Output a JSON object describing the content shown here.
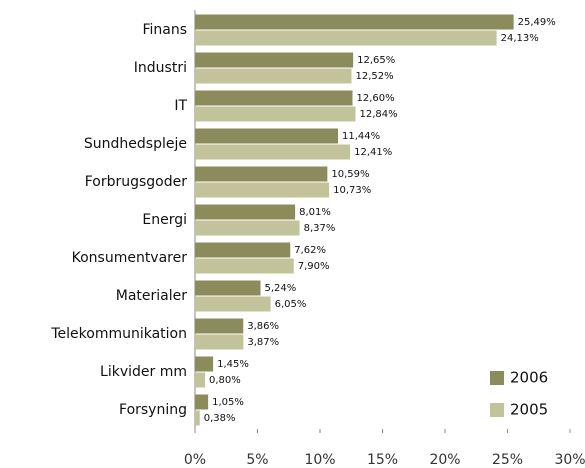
{
  "chart_data": {
    "type": "bar",
    "orientation": "horizontal",
    "categories": [
      "Finans",
      "Industri",
      "IT",
      "Sundhedspleje",
      "Forbrugsgoder",
      "Energi",
      "Konsumentvarer",
      "Materialer",
      "Telekommunikation",
      "Likvider mm",
      "Forsyning"
    ],
    "series": [
      {
        "name": "2006",
        "color": "#8b8b5b",
        "values": [
          25.49,
          12.65,
          12.6,
          11.44,
          10.59,
          8.01,
          7.62,
          5.24,
          3.86,
          1.45,
          1.05
        ],
        "value_labels": [
          "25,49%",
          "12,65%",
          "12,60%",
          "11,44%",
          "10,59%",
          "8,01%",
          "7,62%",
          "5,24%",
          "3,86%",
          "1,45%",
          "1,05%"
        ]
      },
      {
        "name": "2005",
        "color": "#c3c39b",
        "values": [
          24.13,
          12.52,
          12.84,
          12.41,
          10.73,
          8.37,
          7.9,
          6.05,
          3.87,
          0.8,
          0.38
        ],
        "value_labels": [
          "24,13%",
          "12,52%",
          "12,84%",
          "12,41%",
          "10,73%",
          "8,37%",
          "7,90%",
          "6,05%",
          "3,87%",
          "0,80%",
          "0,38%"
        ]
      }
    ],
    "xlim": [
      0,
      30
    ],
    "xticks": [
      {
        "value": 0,
        "label": "0%"
      },
      {
        "value": 5,
        "label": "5%"
      },
      {
        "value": 10,
        "label": "10%"
      },
      {
        "value": 15,
        "label": "15%"
      },
      {
        "value": 20,
        "label": "20%"
      },
      {
        "value": 25,
        "label": "25%"
      },
      {
        "value": 30,
        "label": "30%"
      }
    ],
    "legend": "lower right"
  }
}
